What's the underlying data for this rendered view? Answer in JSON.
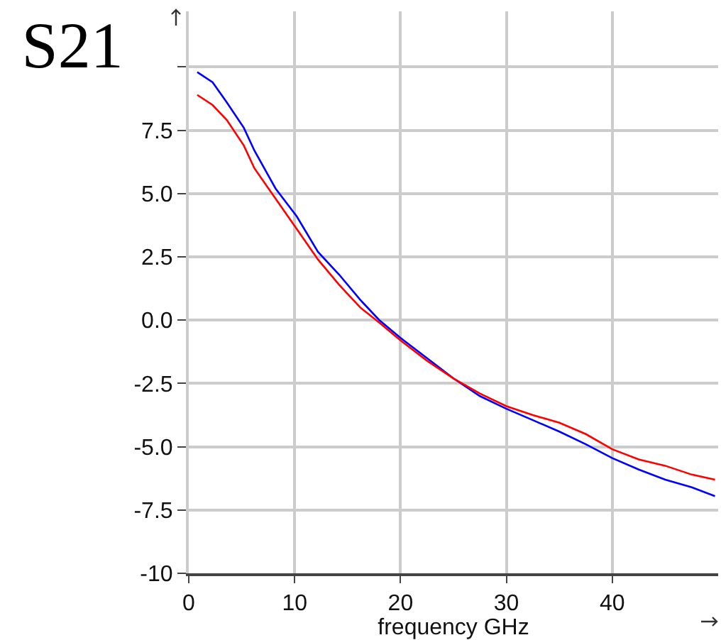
{
  "chart_data": {
    "type": "line",
    "title": "S21",
    "xlabel": "frequency GHz",
    "xlim": [
      0,
      50
    ],
    "ylim": [
      -10,
      12.2
    ],
    "xticks": [
      0,
      10,
      20,
      30,
      40
    ],
    "yticks": [
      -10.0,
      {
        "value": -7.5,
        "label": "-7.5"
      },
      {
        "value": -5,
        "label": "-5.0"
      },
      {
        "value": -2.5,
        "label": "-2.5"
      },
      {
        "value": 0,
        "label": "0.0"
      },
      {
        "value": 2.5,
        "label": "2.5"
      },
      {
        "value": 5,
        "label": "5.0"
      },
      {
        "value": 7.5,
        "label": "7.5"
      },
      {
        "value": 10,
        "label": null
      }
    ],
    "grid": true,
    "marker": "none",
    "line_style": "solid",
    "series": [
      {
        "color": "#0000ff",
        "x": [
          0.8,
          2.25,
          3.6,
          5.2,
          6.2,
          8.2,
          10.2,
          12.2,
          14.2,
          16.2,
          18,
          20,
          22.5,
          25,
          27.5,
          30,
          32.5,
          35,
          37.5,
          40,
          42.5,
          45,
          47.5,
          49.7
        ],
        "values": [
          9.8,
          9.4,
          8.6,
          7.6,
          6.7,
          5.2,
          4.1,
          2.7,
          1.8,
          0.8,
          0,
          -0.7,
          -1.5,
          -2.3,
          -3.0,
          -3.5,
          -3.95,
          -4.4,
          -4.9,
          -5.45,
          -5.9,
          -6.3,
          -6.6,
          -6.95
        ]
      },
      {
        "color": "#ff0000",
        "x": [
          0.8,
          2.25,
          3.6,
          5.2,
          6.2,
          8.2,
          10.2,
          12.2,
          14.2,
          16.2,
          18,
          20,
          22.5,
          25,
          27.5,
          30,
          32.5,
          35,
          37.5,
          40,
          42.5,
          45,
          47.5,
          49.7
        ],
        "values": [
          8.9,
          8.5,
          7.9,
          6.9,
          6.0,
          4.8,
          3.6,
          2.4,
          1.4,
          0.5,
          -0.1,
          -0.8,
          -1.6,
          -2.3,
          -2.9,
          -3.4,
          -3.75,
          -4.05,
          -4.5,
          -5.1,
          -5.5,
          -5.75,
          -6.1,
          -6.3
        ]
      }
    ]
  }
}
